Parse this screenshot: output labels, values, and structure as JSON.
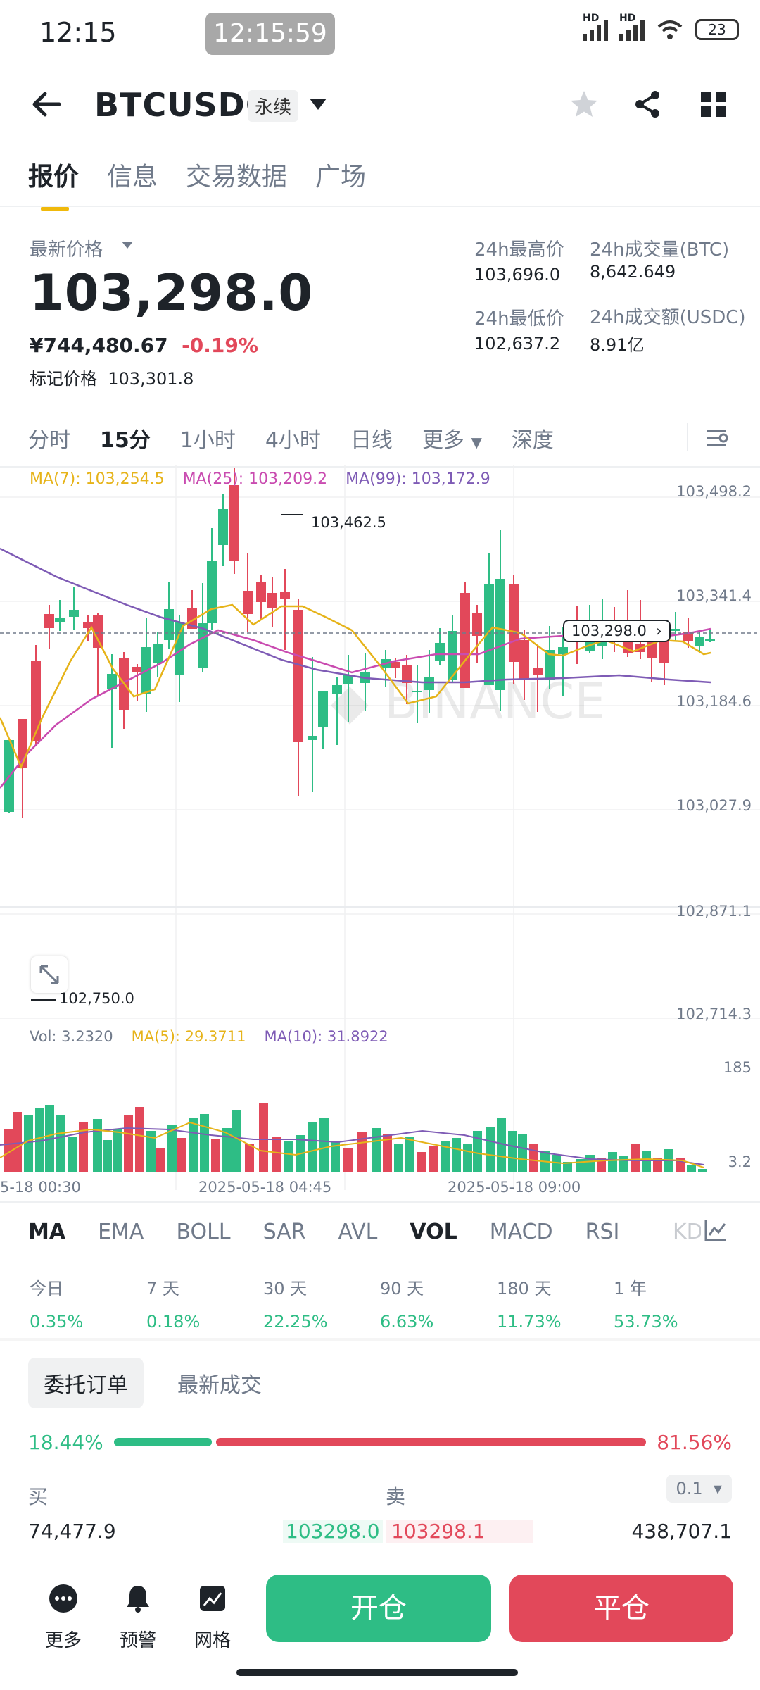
{
  "status_bar": {
    "time": "12:15",
    "clock": "12:15:59",
    "battery": "23",
    "sig1": "HD",
    "sig2": "HD"
  },
  "header": {
    "symbol": "BTCUSDC",
    "badge": "永续"
  },
  "tabs": [
    "报价",
    "信息",
    "交易数据",
    "广场"
  ],
  "price": {
    "latest_label": "最新价格",
    "last": "103,298.0",
    "cny": "¥744,480.67",
    "change": "-0.19%",
    "mark_label": "标记价格",
    "mark": "103,301.8"
  },
  "stats": {
    "high_label": "24h最高价",
    "high": "103,696.0",
    "low_label": "24h最低价",
    "low": "102,637.2",
    "vol_btc_label": "24h成交量(BTC)",
    "vol_btc": "8,642.649",
    "vol_usdc_label": "24h成交额(USDC)",
    "vol_usdc": "8.91亿"
  },
  "intervals": [
    "分时",
    "15分",
    "1小时",
    "4小时",
    "日线",
    "更多",
    "深度"
  ],
  "chart": {
    "ma7": "MA(7): 103,254.5",
    "ma25": "MA(25): 103,209.2",
    "ma99": "MA(99): 103,172.9",
    "price_axis": [
      "103,498.2",
      "103,341.4",
      "103,184.6",
      "103,027.9",
      "102,871.1",
      "102,714.3"
    ],
    "current_tag": "103,298.0",
    "high_mark": "103,462.5",
    "low_mark": "102,750.0",
    "vol": "Vol: 3.2320",
    "vol_ma5": "MA(5): 29.3711",
    "vol_ma10": "MA(10): 31.8922",
    "vol_axis": [
      "185",
      "3.2"
    ],
    "time_axis": [
      "5-18 00:30",
      "2025-05-18 04:45",
      "2025-05-18 09:00"
    ],
    "colors": {
      "up": "#2ebd85",
      "down": "#e2485a",
      "ma7": "#e6b319",
      "ma25": "#c94bb0",
      "ma99": "#7e5bb5"
    }
  },
  "indicators": [
    "MA",
    "EMA",
    "BOLL",
    "SAR",
    "AVL",
    "VOL",
    "MACD",
    "RSI",
    "KD"
  ],
  "performance": [
    {
      "label": "今日",
      "value": "0.35%"
    },
    {
      "label": "7 天",
      "value": "0.18%"
    },
    {
      "label": "30 天",
      "value": "22.25%"
    },
    {
      "label": "90 天",
      "value": "6.63%"
    },
    {
      "label": "180 天",
      "value": "11.73%"
    },
    {
      "label": "1 年",
      "value": "53.73%"
    }
  ],
  "orderbook": {
    "tab_active": "委托订单",
    "tab_other": "最新成交",
    "buy_pct": "18.44%",
    "sell_pct": "81.56%",
    "buy_ratio": 0.1844,
    "buy_label": "买",
    "sell_label": "卖",
    "step": "0.1",
    "bid_qty": "74,477.9",
    "bid_price": "103298.0",
    "ask_price": "103298.1",
    "ask_qty": "438,707.1"
  },
  "bottom": {
    "more": "更多",
    "alert": "预警",
    "grid": "网格",
    "open": "开仓",
    "close": "平仓"
  }
}
